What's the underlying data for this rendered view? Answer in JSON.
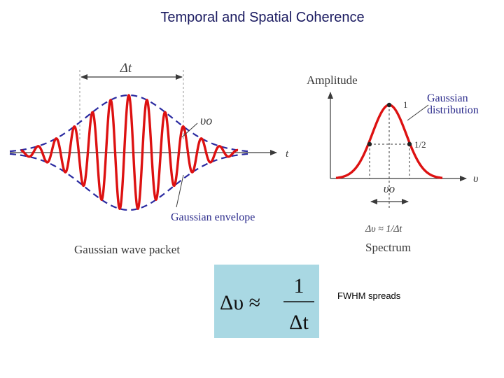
{
  "slide": {
    "title": "Temporal and Spatial Coherence"
  },
  "wave_packet": {
    "delta_t_label": "Δt",
    "t_axis_label": "t",
    "carrier_label": "υo",
    "envelope_label": "Gaussian envelope",
    "caption": "Gaussian wave packet"
  },
  "spectrum": {
    "y_axis_label": "Amplitude",
    "x_axis_label": "υ",
    "peak_label": "1",
    "half_label": "1/2",
    "distribution_label_line1": "Gaussian",
    "distribution_label_line2": "distribution",
    "center_label": "υo",
    "width_label": "Δυ ≈ 1/Δt",
    "caption": "Spectrum"
  },
  "formula": {
    "lhs": "Δυ ≈",
    "numerator": "1",
    "denominator": "Δt"
  },
  "note": {
    "text": "FWHM spreads"
  },
  "colors": {
    "wave": "#dd1111",
    "envelope": "#2a2aa0",
    "formula_bg": "#a9d8e3",
    "title": "#1a1a60"
  }
}
